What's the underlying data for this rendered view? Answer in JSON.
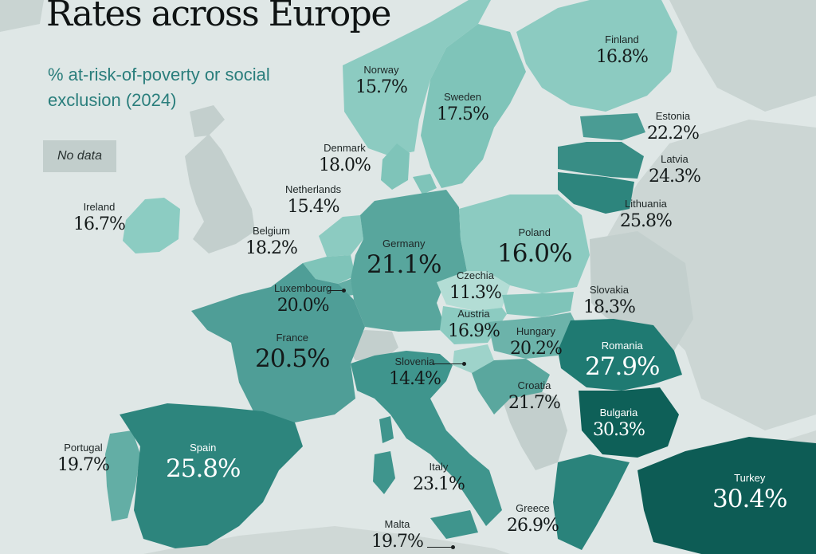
{
  "title": "Rates across Europe",
  "subtitle": "% at-risk-of-poverty or social exclusion (2024)",
  "legend": {
    "no_data": "No data"
  },
  "colors": {
    "background": "#dfe7e6",
    "land_no_data": "#c3cfcd",
    "scale_low": "#a7d9d0",
    "scale_mid": "#4f9e97",
    "scale_high": "#0e5f58",
    "accent_text": "#2a7e7c"
  },
  "countries": {
    "norway": {
      "name": "Norway",
      "value": "15.7%"
    },
    "sweden": {
      "name": "Sweden",
      "value": "17.5%"
    },
    "finland": {
      "name": "Finland",
      "value": "16.8%"
    },
    "estonia": {
      "name": "Estonia",
      "value": "22.2%"
    },
    "latvia": {
      "name": "Latvia",
      "value": "24.3%"
    },
    "lithuania": {
      "name": "Lithuania",
      "value": "25.8%"
    },
    "denmark": {
      "name": "Denmark",
      "value": "18.0%"
    },
    "netherlands": {
      "name": "Netherlands",
      "value": "15.4%"
    },
    "ireland": {
      "name": "Ireland",
      "value": "16.7%"
    },
    "belgium": {
      "name": "Belgium",
      "value": "18.2%"
    },
    "germany": {
      "name": "Germany",
      "value": "21.1%"
    },
    "poland": {
      "name": "Poland",
      "value": "16.0%"
    },
    "czechia": {
      "name": "Czechia",
      "value": "11.3%"
    },
    "slovakia": {
      "name": "Slovakia",
      "value": "18.3%"
    },
    "luxembourg": {
      "name": "Luxembourg",
      "value": "20.0%"
    },
    "austria": {
      "name": "Austria",
      "value": "16.9%"
    },
    "hungary": {
      "name": "Hungary",
      "value": "20.2%"
    },
    "france": {
      "name": "France",
      "value": "20.5%"
    },
    "romania": {
      "name": "Romania",
      "value": "27.9%"
    },
    "slovenia": {
      "name": "Slovenia",
      "value": "14.4%"
    },
    "croatia": {
      "name": "Croatia",
      "value": "21.7%"
    },
    "bulgaria": {
      "name": "Bulgaria",
      "value": "30.3%"
    },
    "portugal": {
      "name": "Portugal",
      "value": "19.7%"
    },
    "spain": {
      "name": "Spain",
      "value": "25.8%"
    },
    "italy": {
      "name": "Italy",
      "value": "23.1%"
    },
    "greece": {
      "name": "Greece",
      "value": "26.9%"
    },
    "turkey": {
      "name": "Turkey",
      "value": "30.4%"
    },
    "malta": {
      "name": "Malta",
      "value": "19.7%"
    }
  }
}
